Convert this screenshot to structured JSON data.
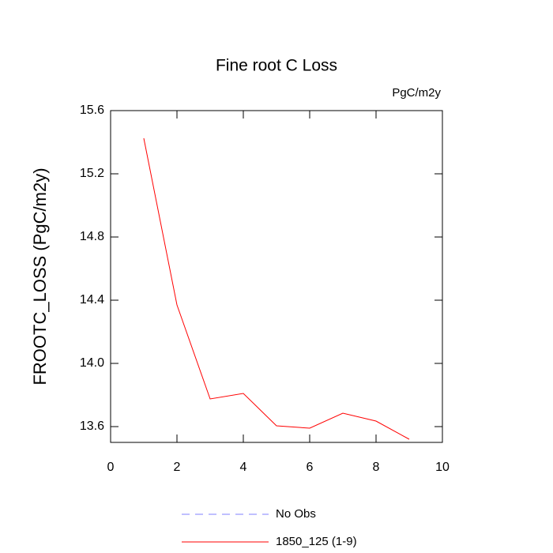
{
  "chart_data": {
    "type": "line",
    "title": "Fine root C Loss",
    "units_label": "PgC/m2y",
    "y_label": "FROOTC_LOSS  (PgC/m2y)",
    "x": [
      1,
      2,
      3,
      4,
      5,
      6,
      7,
      8,
      9
    ],
    "series": [
      {
        "name": "No Obs",
        "color": "#8080ff",
        "dashed": true,
        "values": [
          null,
          null,
          null,
          null,
          null,
          null,
          null,
          null,
          null
        ]
      },
      {
        "name": "1850_125 (1-9)",
        "color": "#ff0000",
        "dashed": false,
        "values": [
          15.425,
          14.37,
          13.775,
          13.81,
          13.605,
          13.59,
          13.685,
          13.635,
          13.52
        ]
      }
    ],
    "xlim": [
      0,
      10
    ],
    "xticks": [
      0,
      2,
      4,
      6,
      8,
      10
    ],
    "ylim": [
      13.5,
      15.6
    ],
    "yticks": [
      {
        "value": 13.6,
        "label": "13.6"
      },
      {
        "value": 14.0,
        "label": "14.0"
      },
      {
        "value": 14.4,
        "label": "14.4"
      },
      {
        "value": 14.8,
        "label": "14.8"
      },
      {
        "value": 15.2,
        "label": "15.2"
      },
      {
        "value": 15.6,
        "label": "15.6"
      }
    ]
  }
}
